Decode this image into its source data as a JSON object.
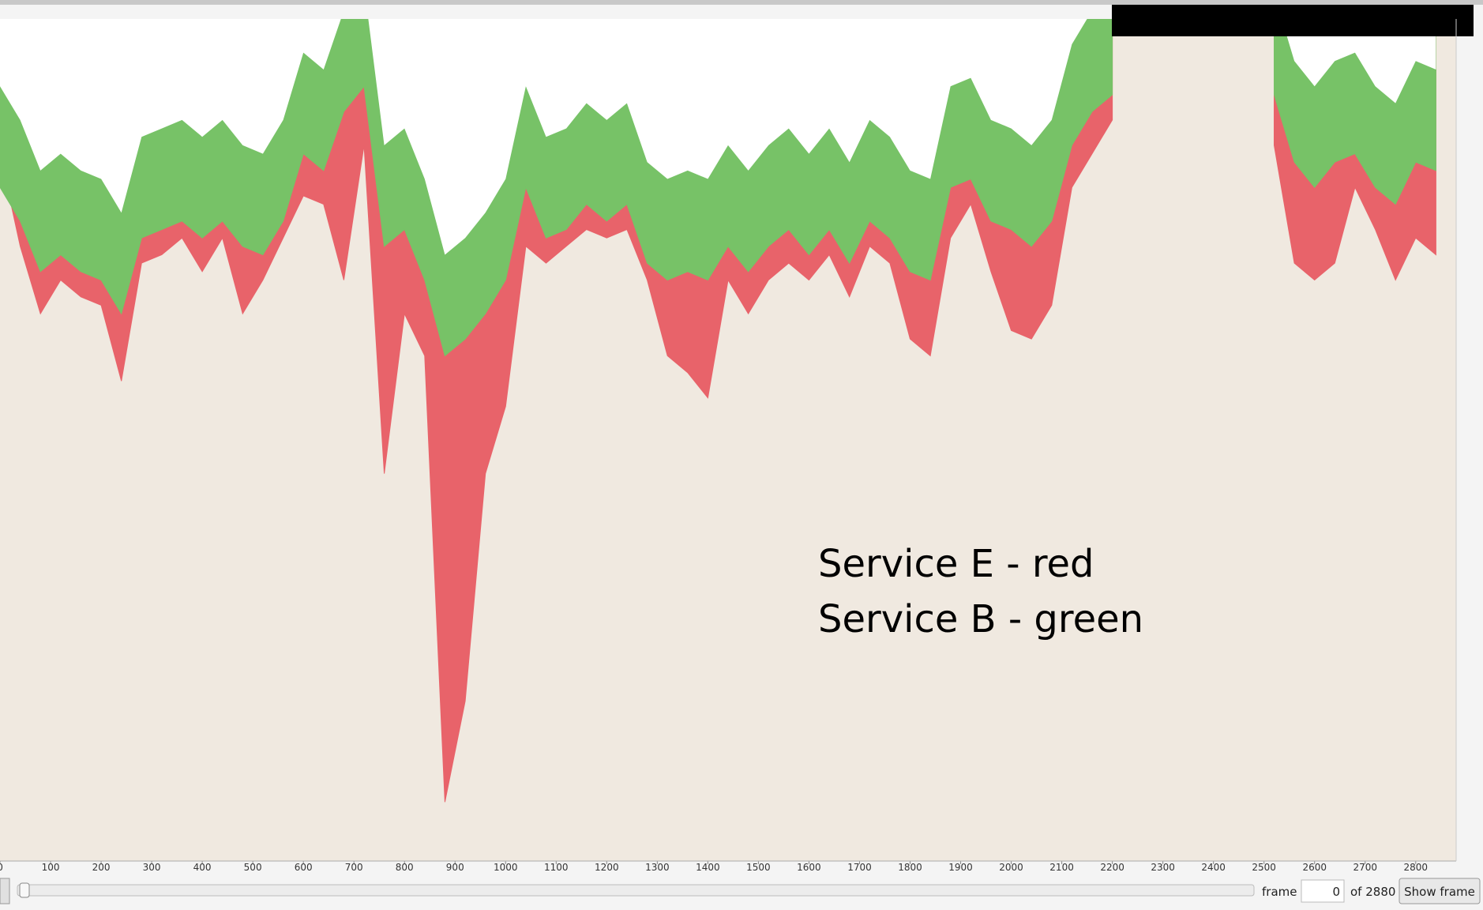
{
  "chart_data": {
    "type": "area",
    "x": [
      0,
      40,
      80,
      120,
      160,
      200,
      240,
      280,
      320,
      360,
      400,
      440,
      480,
      520,
      560,
      600,
      640,
      680,
      720,
      760,
      800,
      840,
      880,
      920,
      960,
      1000,
      1040,
      1080,
      1120,
      1160,
      1200,
      1240,
      1280,
      1320,
      1360,
      1400,
      1440,
      1480,
      1520,
      1560,
      1600,
      1640,
      1680,
      1720,
      1760,
      1800,
      1840,
      1880,
      1920,
      1960,
      2000,
      2040,
      2080,
      2120,
      2160,
      2200,
      2240,
      2280,
      2320,
      2360,
      2400,
      2440,
      2480,
      2520,
      2560,
      2600,
      2640,
      2680,
      2720,
      2760,
      2800,
      2840
    ],
    "series": [
      {
        "color": "#e8636a",
        "values": [
          84,
          73,
          65,
          69,
          67,
          66,
          57,
          71,
          72,
          74,
          70,
          74,
          65,
          69,
          74,
          79,
          78,
          69,
          85,
          46,
          65,
          60,
          7,
          19,
          46,
          54,
          73,
          71,
          73,
          75,
          74,
          75,
          69,
          60,
          58,
          55,
          69,
          65,
          69,
          71,
          69,
          72,
          67,
          73,
          71,
          62,
          60,
          74,
          78,
          70,
          63,
          62,
          66,
          80,
          84,
          88,
          null,
          null,
          null,
          null,
          null,
          null,
          null,
          85,
          71,
          69,
          71,
          80,
          75,
          69,
          74,
          72
        ]
      },
      {
        "color": "#77c267",
        "values": [
          80,
          76,
          70,
          72,
          70,
          69,
          65,
          74,
          75,
          76,
          74,
          76,
          73,
          72,
          76,
          84,
          82,
          89,
          92,
          73,
          75,
          69,
          60,
          62,
          65,
          69,
          80,
          74,
          75,
          78,
          76,
          78,
          71,
          69,
          70,
          69,
          73,
          70,
          73,
          75,
          72,
          75,
          71,
          76,
          74,
          70,
          69,
          80,
          81,
          76,
          75,
          73,
          76,
          85,
          89,
          91,
          null,
          null,
          null,
          null,
          null,
          null,
          null,
          91,
          83,
          80,
          83,
          84,
          80,
          78,
          83,
          82
        ]
      }
    ],
    "annotations": [
      "Service E - red",
      "Service B - green"
    ],
    "xlim": [
      0,
      2880
    ],
    "xticks": [
      0,
      100,
      200,
      300,
      400,
      500,
      600,
      700,
      800,
      900,
      1000,
      1100,
      1200,
      1300,
      1400,
      1500,
      1600,
      1700,
      1800,
      1900,
      2000,
      2100,
      2200,
      2300,
      2400,
      2500,
      2600,
      2700,
      2800
    ],
    "ylim": [
      0,
      100
    ],
    "background_color": "#f0e9e0"
  },
  "controls": {
    "frame_label": "frame",
    "frame_value": "0",
    "frame_total": "of 2880",
    "button": "Show frame"
  }
}
